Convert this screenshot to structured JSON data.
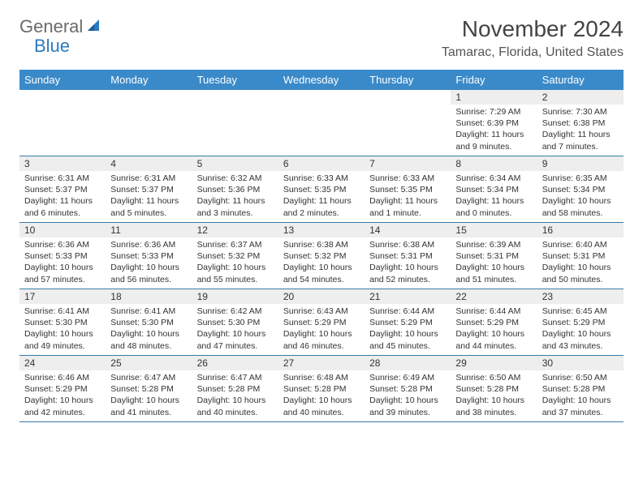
{
  "logo": {
    "text1": "General",
    "text2": "Blue"
  },
  "title": "November 2024",
  "location": "Tamarac, Florida, United States",
  "colors": {
    "header_bg": "#3a8ac9",
    "row_divider": "#3a7aa8",
    "daynum_bg": "#eeeeee",
    "logo_gray": "#6b6b6b",
    "logo_blue": "#2a7abf"
  },
  "weekdays": [
    "Sunday",
    "Monday",
    "Tuesday",
    "Wednesday",
    "Thursday",
    "Friday",
    "Saturday"
  ],
  "weeks": [
    [
      {
        "n": "",
        "sr": "",
        "ss": "",
        "dl": ""
      },
      {
        "n": "",
        "sr": "",
        "ss": "",
        "dl": ""
      },
      {
        "n": "",
        "sr": "",
        "ss": "",
        "dl": ""
      },
      {
        "n": "",
        "sr": "",
        "ss": "",
        "dl": ""
      },
      {
        "n": "",
        "sr": "",
        "ss": "",
        "dl": ""
      },
      {
        "n": "1",
        "sr": "Sunrise: 7:29 AM",
        "ss": "Sunset: 6:39 PM",
        "dl": "Daylight: 11 hours and 9 minutes."
      },
      {
        "n": "2",
        "sr": "Sunrise: 7:30 AM",
        "ss": "Sunset: 6:38 PM",
        "dl": "Daylight: 11 hours and 7 minutes."
      }
    ],
    [
      {
        "n": "3",
        "sr": "Sunrise: 6:31 AM",
        "ss": "Sunset: 5:37 PM",
        "dl": "Daylight: 11 hours and 6 minutes."
      },
      {
        "n": "4",
        "sr": "Sunrise: 6:31 AM",
        "ss": "Sunset: 5:37 PM",
        "dl": "Daylight: 11 hours and 5 minutes."
      },
      {
        "n": "5",
        "sr": "Sunrise: 6:32 AM",
        "ss": "Sunset: 5:36 PM",
        "dl": "Daylight: 11 hours and 3 minutes."
      },
      {
        "n": "6",
        "sr": "Sunrise: 6:33 AM",
        "ss": "Sunset: 5:35 PM",
        "dl": "Daylight: 11 hours and 2 minutes."
      },
      {
        "n": "7",
        "sr": "Sunrise: 6:33 AM",
        "ss": "Sunset: 5:35 PM",
        "dl": "Daylight: 11 hours and 1 minute."
      },
      {
        "n": "8",
        "sr": "Sunrise: 6:34 AM",
        "ss": "Sunset: 5:34 PM",
        "dl": "Daylight: 11 hours and 0 minutes."
      },
      {
        "n": "9",
        "sr": "Sunrise: 6:35 AM",
        "ss": "Sunset: 5:34 PM",
        "dl": "Daylight: 10 hours and 58 minutes."
      }
    ],
    [
      {
        "n": "10",
        "sr": "Sunrise: 6:36 AM",
        "ss": "Sunset: 5:33 PM",
        "dl": "Daylight: 10 hours and 57 minutes."
      },
      {
        "n": "11",
        "sr": "Sunrise: 6:36 AM",
        "ss": "Sunset: 5:33 PM",
        "dl": "Daylight: 10 hours and 56 minutes."
      },
      {
        "n": "12",
        "sr": "Sunrise: 6:37 AM",
        "ss": "Sunset: 5:32 PM",
        "dl": "Daylight: 10 hours and 55 minutes."
      },
      {
        "n": "13",
        "sr": "Sunrise: 6:38 AM",
        "ss": "Sunset: 5:32 PM",
        "dl": "Daylight: 10 hours and 54 minutes."
      },
      {
        "n": "14",
        "sr": "Sunrise: 6:38 AM",
        "ss": "Sunset: 5:31 PM",
        "dl": "Daylight: 10 hours and 52 minutes."
      },
      {
        "n": "15",
        "sr": "Sunrise: 6:39 AM",
        "ss": "Sunset: 5:31 PM",
        "dl": "Daylight: 10 hours and 51 minutes."
      },
      {
        "n": "16",
        "sr": "Sunrise: 6:40 AM",
        "ss": "Sunset: 5:31 PM",
        "dl": "Daylight: 10 hours and 50 minutes."
      }
    ],
    [
      {
        "n": "17",
        "sr": "Sunrise: 6:41 AM",
        "ss": "Sunset: 5:30 PM",
        "dl": "Daylight: 10 hours and 49 minutes."
      },
      {
        "n": "18",
        "sr": "Sunrise: 6:41 AM",
        "ss": "Sunset: 5:30 PM",
        "dl": "Daylight: 10 hours and 48 minutes."
      },
      {
        "n": "19",
        "sr": "Sunrise: 6:42 AM",
        "ss": "Sunset: 5:30 PM",
        "dl": "Daylight: 10 hours and 47 minutes."
      },
      {
        "n": "20",
        "sr": "Sunrise: 6:43 AM",
        "ss": "Sunset: 5:29 PM",
        "dl": "Daylight: 10 hours and 46 minutes."
      },
      {
        "n": "21",
        "sr": "Sunrise: 6:44 AM",
        "ss": "Sunset: 5:29 PM",
        "dl": "Daylight: 10 hours and 45 minutes."
      },
      {
        "n": "22",
        "sr": "Sunrise: 6:44 AM",
        "ss": "Sunset: 5:29 PM",
        "dl": "Daylight: 10 hours and 44 minutes."
      },
      {
        "n": "23",
        "sr": "Sunrise: 6:45 AM",
        "ss": "Sunset: 5:29 PM",
        "dl": "Daylight: 10 hours and 43 minutes."
      }
    ],
    [
      {
        "n": "24",
        "sr": "Sunrise: 6:46 AM",
        "ss": "Sunset: 5:29 PM",
        "dl": "Daylight: 10 hours and 42 minutes."
      },
      {
        "n": "25",
        "sr": "Sunrise: 6:47 AM",
        "ss": "Sunset: 5:28 PM",
        "dl": "Daylight: 10 hours and 41 minutes."
      },
      {
        "n": "26",
        "sr": "Sunrise: 6:47 AM",
        "ss": "Sunset: 5:28 PM",
        "dl": "Daylight: 10 hours and 40 minutes."
      },
      {
        "n": "27",
        "sr": "Sunrise: 6:48 AM",
        "ss": "Sunset: 5:28 PM",
        "dl": "Daylight: 10 hours and 40 minutes."
      },
      {
        "n": "28",
        "sr": "Sunrise: 6:49 AM",
        "ss": "Sunset: 5:28 PM",
        "dl": "Daylight: 10 hours and 39 minutes."
      },
      {
        "n": "29",
        "sr": "Sunrise: 6:50 AM",
        "ss": "Sunset: 5:28 PM",
        "dl": "Daylight: 10 hours and 38 minutes."
      },
      {
        "n": "30",
        "sr": "Sunrise: 6:50 AM",
        "ss": "Sunset: 5:28 PM",
        "dl": "Daylight: 10 hours and 37 minutes."
      }
    ]
  ]
}
